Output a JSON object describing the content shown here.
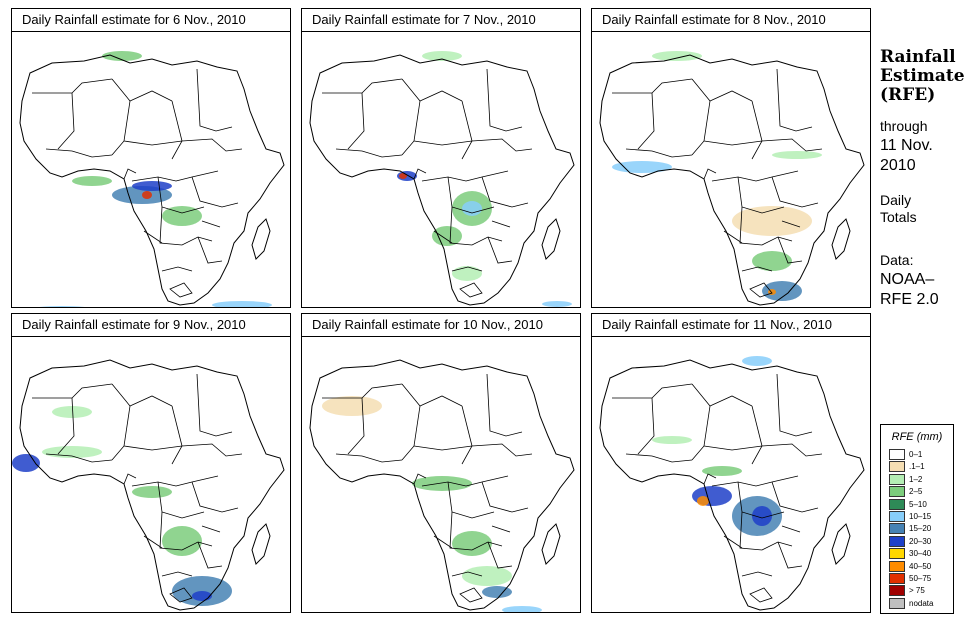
{
  "panels": [
    {
      "title": "Daily Rainfall estimate for  6 Nov., 2010"
    },
    {
      "title": "Daily Rainfall estimate for  7 Nov., 2010"
    },
    {
      "title": "Daily Rainfall estimate for  8 Nov., 2010"
    },
    {
      "title": "Daily Rainfall estimate for  9 Nov., 2010"
    },
    {
      "title": "Daily Rainfall estimate for  10 Nov., 2010"
    },
    {
      "title": "Daily Rainfall estimate for  11 Nov., 2010"
    }
  ],
  "side": {
    "title_line1": "Rainfall",
    "title_line2": "Estimate",
    "title_line3": "(RFE)",
    "through": "through",
    "date_line1": "11 Nov.",
    "date_line2": "2010",
    "daily": "Daily",
    "totals": "Totals",
    "data_label": "Data:",
    "source_line1": "NOAA–",
    "source_line2": "RFE 2.0"
  },
  "legend": {
    "title": "RFE (mm)",
    "items": [
      {
        "label": "0–1",
        "color": "#ffffff"
      },
      {
        "label": ".1–1",
        "color": "#f5deb3"
      },
      {
        "label": "1–2",
        "color": "#b4eeb4"
      },
      {
        "label": "2–5",
        "color": "#7ccd7c"
      },
      {
        "label": "5–10",
        "color": "#2e8b57"
      },
      {
        "label": "10–15",
        "color": "#87cefa"
      },
      {
        "label": "15–20",
        "color": "#4682b4"
      },
      {
        "label": "20–30",
        "color": "#1e40c8"
      },
      {
        "label": "30–40",
        "color": "#ffd700"
      },
      {
        "label": "40–50",
        "color": "#ff8c00"
      },
      {
        "label": "50–75",
        "color": "#e03000"
      },
      {
        "label": "> 75",
        "color": "#a00000"
      },
      {
        "label": "nodata",
        "color": "#c0c0c0"
      }
    ]
  }
}
